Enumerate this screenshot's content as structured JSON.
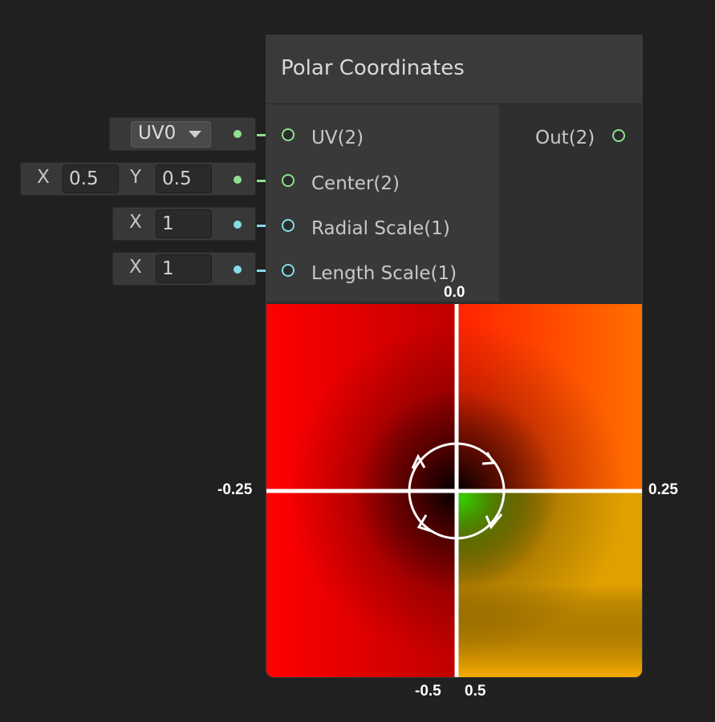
{
  "node": {
    "title": "Polar Coordinates",
    "inputs": [
      {
        "label": "UV(2)",
        "color": "#8ee08e"
      },
      {
        "label": "Center(2)",
        "color": "#8ee08e"
      },
      {
        "label": "Radial Scale(1)",
        "color": "#85dbe6"
      },
      {
        "label": "Length Scale(1)",
        "color": "#85dbe6"
      }
    ],
    "output": {
      "label": "Out(2)",
      "color": "#8ee08e"
    }
  },
  "fields": {
    "uv": {
      "value": "UV0"
    },
    "center": {
      "x_label": "X",
      "x_value": "0.5",
      "y_label": "Y",
      "y_value": "0.5"
    },
    "radial_scale": {
      "x_label": "X",
      "x_value": "1"
    },
    "length_scale": {
      "x_label": "X",
      "x_value": "1"
    }
  },
  "preview": {
    "top_label": "0.0",
    "left_label": "-0.25",
    "right_label": "0.25",
    "bottom_left_label": "-0.5",
    "bottom_right_label": "0.5"
  },
  "icons": [
    "dropdown-arrow-icon",
    "port-circle-icon",
    "rotation-arrows-icon"
  ]
}
